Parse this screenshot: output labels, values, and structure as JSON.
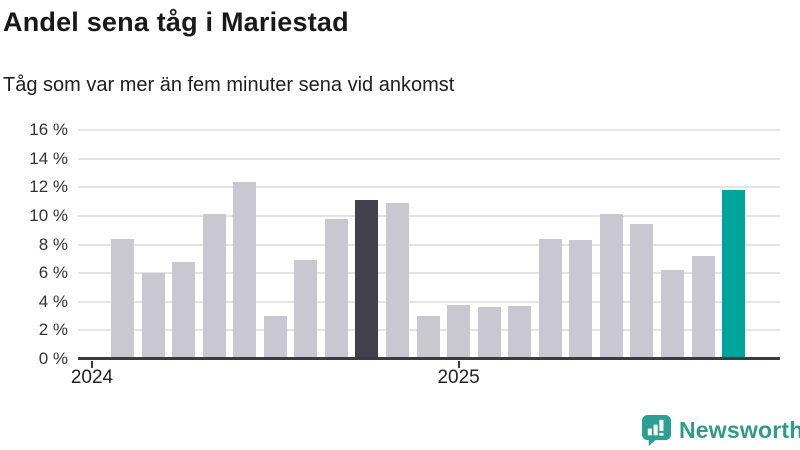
{
  "header": {
    "title": "Andel sena tåg i Mariestad",
    "subtitle": "Tåg som var mer än fem minuter sena vid ankomst"
  },
  "chart_data": {
    "type": "bar",
    "title": "Andel sena tåg i Mariestad",
    "subtitle": "Tåg som var mer än fem minuter sena vid ankomst",
    "ylabel": "",
    "xlabel": "",
    "ylim": [
      0,
      16
    ],
    "grid": true,
    "y_axis": {
      "ticks": [
        {
          "value": 0,
          "label": "0 %"
        },
        {
          "value": 2,
          "label": "2 %"
        },
        {
          "value": 4,
          "label": "4 %"
        },
        {
          "value": 6,
          "label": "6 %"
        },
        {
          "value": 8,
          "label": "8 %"
        },
        {
          "value": 10,
          "label": "10 %"
        },
        {
          "value": 12,
          "label": "12 %"
        },
        {
          "value": 14,
          "label": "14 %"
        },
        {
          "value": 16,
          "label": "16 %"
        }
      ]
    },
    "x_axis": {
      "ticks": [
        {
          "label": "2024",
          "month": "2024-01"
        },
        {
          "label": "2025",
          "month": "2025-01"
        }
      ]
    },
    "bars": [
      {
        "month": "2024-02",
        "value": 8.4,
        "color": "default"
      },
      {
        "month": "2024-03",
        "value": 6.0,
        "color": "default"
      },
      {
        "month": "2024-04",
        "value": 6.8,
        "color": "default"
      },
      {
        "month": "2024-05",
        "value": 10.1,
        "color": "default"
      },
      {
        "month": "2024-06",
        "value": 12.4,
        "color": "default"
      },
      {
        "month": "2024-07",
        "value": 3.0,
        "color": "default"
      },
      {
        "month": "2024-08",
        "value": 6.9,
        "color": "default"
      },
      {
        "month": "2024-09",
        "value": 9.8,
        "color": "default"
      },
      {
        "month": "2024-10",
        "value": 11.1,
        "color": "dark"
      },
      {
        "month": "2024-11",
        "value": 10.9,
        "color": "default"
      },
      {
        "month": "2024-12",
        "value": 3.0,
        "color": "default"
      },
      {
        "month": "2025-01",
        "value": 3.8,
        "color": "default"
      },
      {
        "month": "2025-02",
        "value": 3.6,
        "color": "default"
      },
      {
        "month": "2025-03",
        "value": 3.7,
        "color": "default"
      },
      {
        "month": "2025-04",
        "value": 8.4,
        "color": "default"
      },
      {
        "month": "2025-05",
        "value": 8.3,
        "color": "default"
      },
      {
        "month": "2025-06",
        "value": 10.1,
        "color": "default"
      },
      {
        "month": "2025-07",
        "value": 9.4,
        "color": "default"
      },
      {
        "month": "2025-08",
        "value": 6.2,
        "color": "default"
      },
      {
        "month": "2025-09",
        "value": 7.2,
        "color": "default"
      },
      {
        "month": "2025-10",
        "value": 11.8,
        "color": "teal"
      }
    ],
    "colors": {
      "default": "#c9c8d1",
      "dark": "#42404d",
      "teal": "#00a49a",
      "gridline": "#e4e4e7",
      "axis": "#3b3b45"
    },
    "legend": null
  },
  "footer": {
    "brand": "Newsworthy",
    "brand_color": "#2f9a8e",
    "logo_icon": "bar-chart-speech-bubble-icon"
  }
}
